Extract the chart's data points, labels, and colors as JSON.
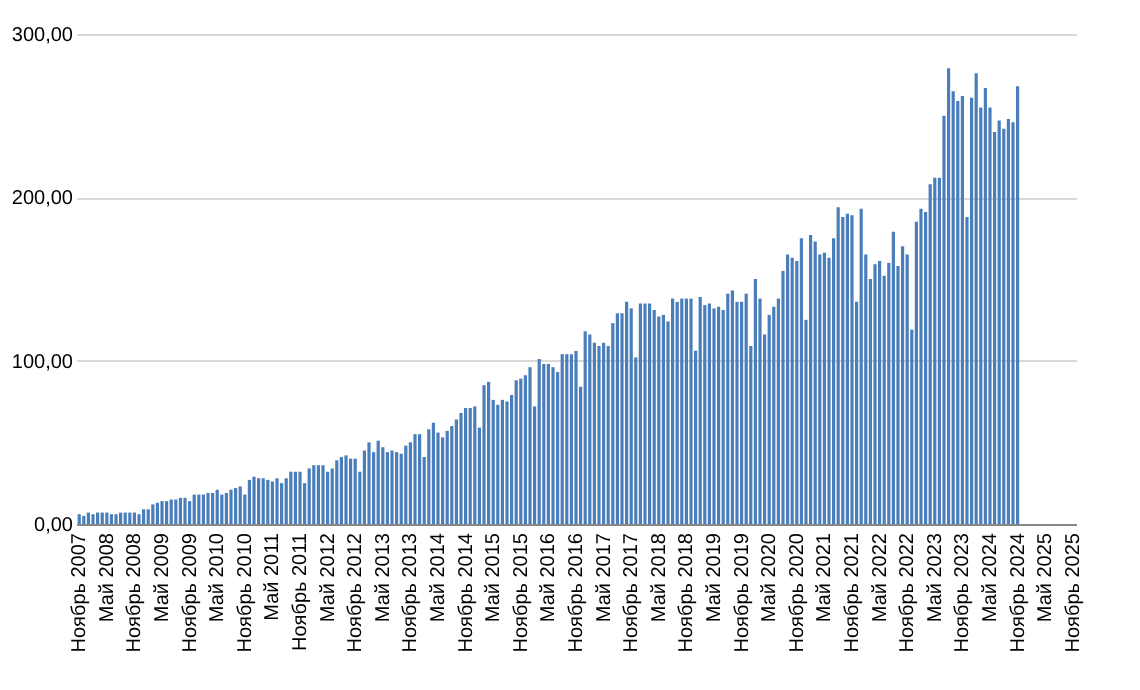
{
  "chart_data": {
    "type": "bar",
    "categories": [
      "Ноябрь 2007",
      null,
      null,
      null,
      null,
      null,
      "Май 2008",
      null,
      null,
      null,
      null,
      null,
      "Ноябрь 2008",
      null,
      null,
      null,
      null,
      null,
      "Май 2009",
      null,
      null,
      null,
      null,
      null,
      "Ноябрь 2009",
      null,
      null,
      null,
      null,
      null,
      "Май 2010",
      null,
      null,
      null,
      null,
      null,
      "Ноябрь 2010",
      null,
      null,
      null,
      null,
      null,
      "Май 2011",
      null,
      null,
      null,
      null,
      null,
      "Ноябрь 2011",
      null,
      null,
      null,
      null,
      null,
      "Май 2012",
      null,
      null,
      null,
      null,
      null,
      "Ноябрь 2012",
      null,
      null,
      null,
      null,
      null,
      "Май 2013",
      null,
      null,
      null,
      null,
      null,
      "Ноябрь 2013",
      null,
      null,
      null,
      null,
      null,
      "Май 2014",
      null,
      null,
      null,
      null,
      null,
      "Ноябрь 2014",
      null,
      null,
      null,
      null,
      null,
      "Май 2015",
      null,
      null,
      null,
      null,
      null,
      "Ноябрь 2015",
      null,
      null,
      null,
      null,
      null,
      "Май 2016",
      null,
      null,
      null,
      null,
      null,
      "Ноябрь 2016",
      null,
      null,
      null,
      null,
      null,
      "Май 2017",
      null,
      null,
      null,
      null,
      null,
      "Ноябрь 2017",
      null,
      null,
      null,
      null,
      null,
      "Май 2018",
      null,
      null,
      null,
      null,
      null,
      "Ноябрь 2018",
      null,
      null,
      null,
      null,
      null,
      "Май 2019",
      null,
      null,
      null,
      null,
      null,
      "Ноябрь 2019",
      null,
      null,
      null,
      null,
      null,
      "Май 2020",
      null,
      null,
      null,
      null,
      null,
      "Ноябрь 2020",
      null,
      null,
      null,
      null,
      null,
      "Май 2021",
      null,
      null,
      null,
      null,
      null,
      "Ноябрь 2021",
      null,
      null,
      null,
      null,
      null,
      "Май 2022",
      null,
      null,
      null,
      null,
      null,
      "Ноябрь 2022",
      null,
      null,
      null,
      null,
      null,
      "Май 2023",
      null,
      null,
      null,
      null,
      null,
      "Ноябрь 2023",
      null,
      null,
      null,
      null,
      null,
      "Май 2024",
      null,
      null,
      null,
      null,
      null,
      "Ноябрь 2024",
      null,
      null,
      null,
      null,
      null,
      "Май 2025",
      null,
      null,
      null,
      null,
      null,
      "Ноябрь 2025"
    ],
    "values": [
      6,
      5,
      7,
      6,
      7,
      7,
      7,
      6,
      6,
      7,
      7,
      7,
      7,
      6,
      9,
      9,
      12,
      13,
      14,
      14,
      15,
      15,
      16,
      16,
      14,
      18,
      18,
      18,
      19,
      19,
      21,
      18,
      19,
      21,
      22,
      23,
      18,
      27,
      29,
      28,
      28,
      27,
      26,
      28,
      25,
      28,
      32,
      32,
      32,
      25,
      34,
      36,
      36,
      36,
      32,
      34,
      39,
      41,
      42,
      40,
      40,
      32,
      45,
      50,
      44,
      51,
      47,
      44,
      45,
      44,
      43,
      48,
      50,
      55,
      55,
      41,
      58,
      62,
      56,
      53,
      57,
      60,
      64,
      68,
      71,
      71,
      72,
      59,
      85,
      87,
      76,
      73,
      76,
      75,
      79,
      88,
      89,
      91,
      96,
      72,
      101,
      98,
      98,
      96,
      93,
      104,
      104,
      104,
      106,
      84,
      118,
      116,
      111,
      109,
      111,
      109,
      123,
      129,
      129,
      136,
      132,
      102,
      135,
      135,
      135,
      131,
      127,
      128,
      124,
      138,
      136,
      138,
      138,
      138,
      106,
      139,
      134,
      135,
      132,
      133,
      131,
      141,
      143,
      136,
      136,
      141,
      109,
      150,
      138,
      116,
      128,
      133,
      138,
      155,
      165,
      163,
      161,
      175,
      125,
      177,
      173,
      165,
      166,
      163,
      175,
      194,
      188,
      190,
      189,
      136,
      193,
      165,
      150,
      159,
      161,
      152,
      160,
      179,
      158,
      170,
      165,
      119,
      185,
      193,
      191,
      208,
      212,
      212,
      250,
      279,
      265,
      259,
      262,
      188,
      261,
      276,
      255,
      267,
      255,
      240,
      247,
      242,
      248,
      246,
      268,
      null,
      null,
      null,
      null,
      null,
      null,
      null,
      null,
      null,
      null,
      null,
      null
    ],
    "color": "#4a7ebb",
    "ylim": [
      0,
      300
    ],
    "yticks": [
      {
        "value": 0,
        "label": "0,00"
      },
      {
        "value": 100,
        "label": "100,00"
      },
      {
        "value": 200,
        "label": "200,00"
      },
      {
        "value": 300,
        "label": "300,00"
      }
    ],
    "grid": "y"
  }
}
